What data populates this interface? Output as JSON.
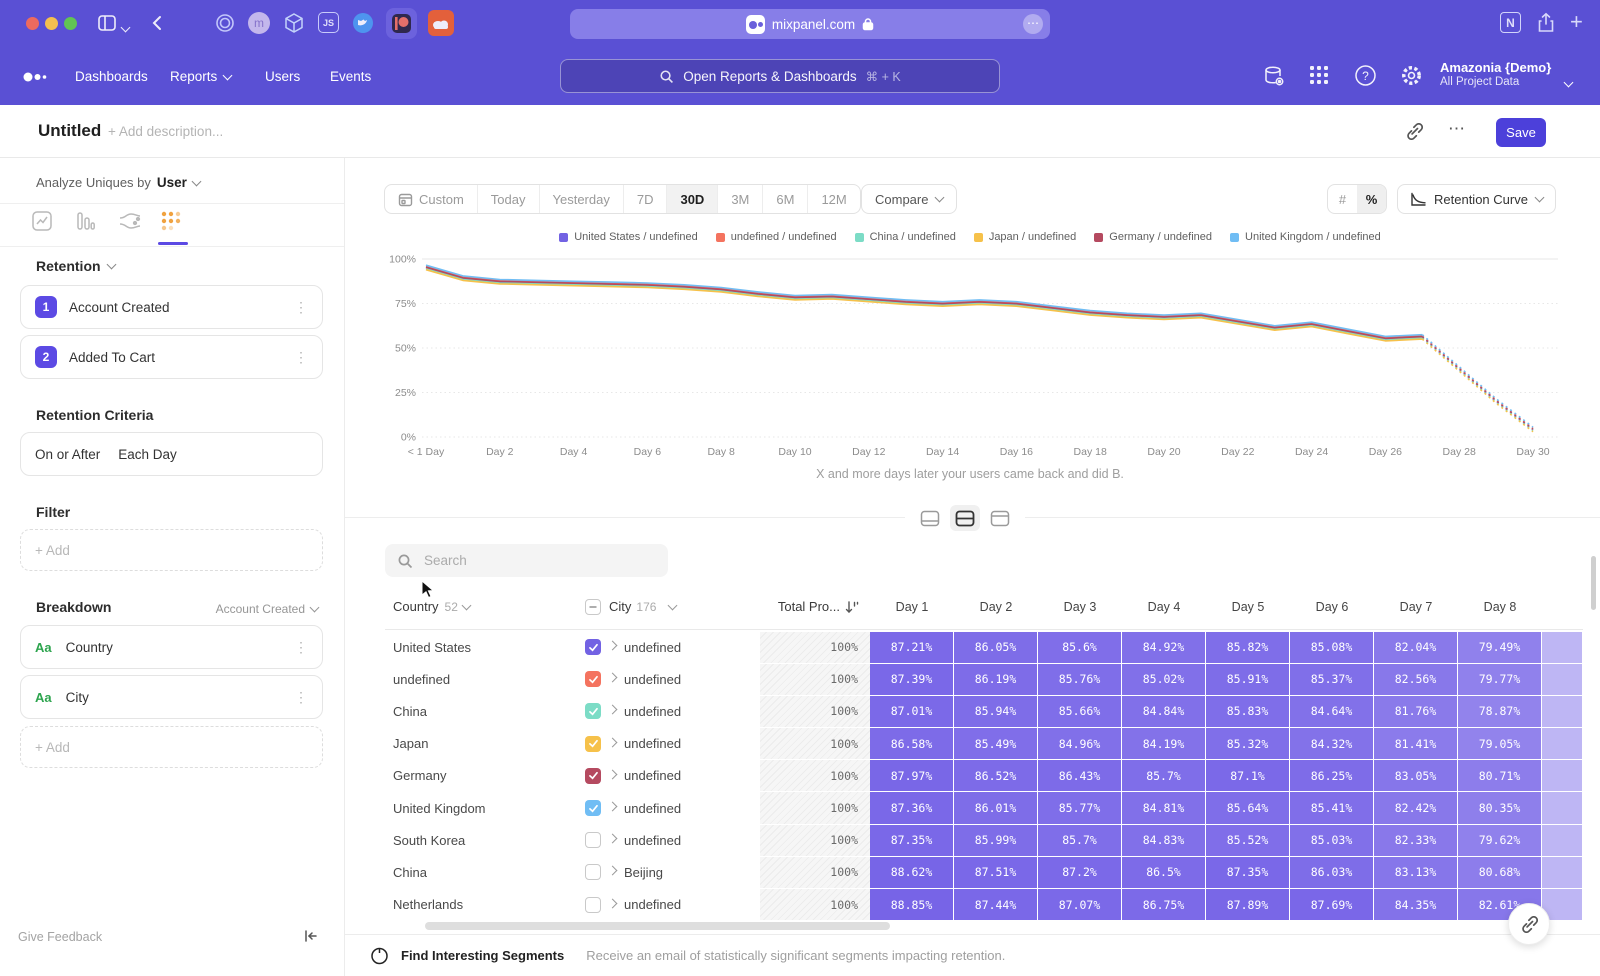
{
  "colors": {
    "top_purple": "#5a50d4",
    "accent": "#4c40da",
    "cell_base_rgb": "101,80,228",
    "active_tab_orange": "#f0a23f",
    "badge_purple": "#5c4ae4"
  },
  "browser": {
    "url": "mixpanel.com",
    "avatar_letter": "m",
    "js_badge": "JS",
    "notion_letter": "N",
    "more_glyph": "⋯"
  },
  "nav": {
    "items": [
      "Dashboards",
      "Reports",
      "Users",
      "Events"
    ],
    "search": {
      "placeholder": "Open Reports & Dashboards",
      "shortcut": "⌘ + K"
    },
    "account": {
      "name": "Amazonia {Demo}",
      "subtitle": "All Project Data"
    }
  },
  "header": {
    "title": "Untitled",
    "description_placeholder": "+ Add description...",
    "more_glyph": "⋯",
    "save_label": "Save"
  },
  "sidebar": {
    "analyze_label": "Analyze Uniques by",
    "analyze_value": "User",
    "section_title": "Retention",
    "steps": [
      {
        "num": "1",
        "label": "Account Created"
      },
      {
        "num": "2",
        "label": "Added To Cart"
      }
    ],
    "kebab_glyph": "⋮",
    "criteria_title": "Retention Criteria",
    "criteria_left": "On or After",
    "criteria_right": "Each Day",
    "filter_title": "Filter",
    "add_label": "+ Add",
    "breakdown_title": "Breakdown",
    "breakdown_context": "Account Created",
    "breakdown_items": [
      {
        "badge": "Aa",
        "label": "Country"
      },
      {
        "badge": "Aa",
        "label": "City"
      }
    ],
    "feedback": "Give Feedback"
  },
  "controls": {
    "ranges": [
      "Custom",
      "Today",
      "Yesterday",
      "7D",
      "30D",
      "3M",
      "6M",
      "12M"
    ],
    "active_range": "30D",
    "compare_label": "Compare",
    "unit_hash": "#",
    "unit_percent": "%",
    "chart_selector": "Retention Curve"
  },
  "chart_data": {
    "type": "line",
    "title": "",
    "xlabel": "",
    "ylabel": "",
    "ylim": [
      0,
      100
    ],
    "x_range_days": [
      0,
      30
    ],
    "grid": "horizontal-dotted",
    "legend_position": "top",
    "dashed_from_day": 27,
    "y_ticks": [
      "0%",
      "25%",
      "50%",
      "75%",
      "100%"
    ],
    "x_tick_labels": [
      "< 1 Day",
      "Day 2",
      "Day 4",
      "Day 6",
      "Day 8",
      "Day 10",
      "Day 12",
      "Day 14",
      "Day 16",
      "Day 18",
      "Day 20",
      "Day 22",
      "Day 24",
      "Day 26",
      "Day 28",
      "Day 30"
    ],
    "series": [
      {
        "name": "United States / undefined",
        "color": "#7262e3",
        "values": [
          95,
          89,
          87,
          86.5,
          86,
          85.5,
          85,
          84,
          82.5,
          80,
          78,
          78.5,
          77,
          75.5,
          74.5,
          75.5,
          74.5,
          72,
          69.5,
          68,
          67,
          68,
          64.5,
          61,
          63,
          59,
          55,
          56,
          38,
          20,
          4
        ]
      },
      {
        "name": "undefined / undefined",
        "color": "#f4735f",
        "values": [
          95.8,
          89.8,
          87.8,
          87.3,
          86.8,
          86.3,
          85.8,
          84.8,
          83.3,
          80.8,
          78.8,
          79.3,
          77.8,
          76.3,
          75.3,
          76.3,
          75.3,
          72.8,
          70.3,
          68.8,
          67.8,
          68.8,
          65.3,
          61.8,
          63.8,
          59.8,
          55.8,
          56.8,
          38.8,
          20.8,
          4.8
        ]
      },
      {
        "name": "China / undefined",
        "color": "#7cdcc6",
        "values": [
          94.6,
          88.6,
          86.6,
          86.1,
          85.6,
          85.1,
          84.6,
          83.6,
          82.1,
          79.6,
          77.6,
          78.1,
          76.6,
          75.1,
          74.1,
          75.1,
          74.1,
          71.6,
          69.1,
          67.6,
          66.6,
          67.6,
          64.1,
          60.6,
          62.6,
          58.6,
          54.6,
          55.6,
          37.6,
          19.6,
          3.6
        ]
      },
      {
        "name": "Japan / undefined",
        "color": "#f6c14a",
        "values": [
          94,
          88,
          86,
          85.5,
          85,
          84.5,
          84,
          83,
          81.5,
          79,
          77,
          77.5,
          76,
          74.5,
          73.5,
          74.5,
          73.5,
          71,
          68.5,
          67,
          66,
          67,
          63.5,
          60,
          62,
          58,
          54,
          55,
          37,
          19,
          3
        ]
      },
      {
        "name": "Germany / undefined",
        "color": "#b54a60",
        "values": [
          95.4,
          89.4,
          87.4,
          86.9,
          86.4,
          85.9,
          85.4,
          84.4,
          82.9,
          80.4,
          78.4,
          78.9,
          77.4,
          75.9,
          74.9,
          75.9,
          74.9,
          72.4,
          69.9,
          68.4,
          67.4,
          68.4,
          64.9,
          61.4,
          63.4,
          59.4,
          55.4,
          56.4,
          38.4,
          20.4,
          4.4
        ]
      },
      {
        "name": "United Kingdom / undefined",
        "color": "#70bdf4",
        "values": [
          96.5,
          90.5,
          88.5,
          88,
          87.5,
          87,
          86.5,
          85.5,
          84,
          81.5,
          79.5,
          80,
          78.5,
          77,
          76,
          77,
          76,
          73.5,
          71,
          69.5,
          68.5,
          69.5,
          66,
          62.5,
          64.5,
          60.5,
          56.5,
          57.5,
          39.5,
          21.5,
          5.5
        ]
      }
    ],
    "caption": "X and more days later your users came back and did B."
  },
  "table": {
    "search_placeholder": "Search",
    "country_col": {
      "label": "Country",
      "count": "52"
    },
    "city_col": {
      "label": "City",
      "count": "176"
    },
    "total_col": "Total Pro...",
    "day_headers": [
      "Day 1",
      "Day 2",
      "Day 3",
      "Day 4",
      "Day 5",
      "Day 6",
      "Day 7",
      "Day 8"
    ],
    "rows": [
      {
        "country": "United States",
        "city": "undefined",
        "checked": true,
        "color": "#7262e3",
        "total": "100%",
        "values": [
          "87.21%",
          "86.05%",
          "85.6%",
          "84.92%",
          "85.82%",
          "85.08%",
          "82.04%",
          "79.49%"
        ]
      },
      {
        "country": "undefined",
        "city": "undefined",
        "checked": true,
        "color": "#f4735f",
        "total": "100%",
        "values": [
          "87.39%",
          "86.19%",
          "85.76%",
          "85.02%",
          "85.91%",
          "85.37%",
          "82.56%",
          "79.77%"
        ]
      },
      {
        "country": "China",
        "city": "undefined",
        "checked": true,
        "color": "#7cdcc6",
        "total": "100%",
        "values": [
          "87.01%",
          "85.94%",
          "85.66%",
          "84.84%",
          "85.83%",
          "84.64%",
          "81.76%",
          "78.87%"
        ]
      },
      {
        "country": "Japan",
        "city": "undefined",
        "checked": true,
        "color": "#f6c14a",
        "total": "100%",
        "values": [
          "86.58%",
          "85.49%",
          "84.96%",
          "84.19%",
          "85.32%",
          "84.32%",
          "81.41%",
          "79.05%"
        ]
      },
      {
        "country": "Germany",
        "city": "undefined",
        "checked": true,
        "color": "#b54a60",
        "total": "100%",
        "values": [
          "87.97%",
          "86.52%",
          "86.43%",
          "85.7%",
          "87.1%",
          "86.25%",
          "83.05%",
          "80.71%"
        ]
      },
      {
        "country": "United Kingdom",
        "city": "undefined",
        "checked": true,
        "color": "#70bdf4",
        "total": "100%",
        "values": [
          "87.36%",
          "86.01%",
          "85.77%",
          "84.81%",
          "85.64%",
          "85.41%",
          "82.42%",
          "80.35%"
        ]
      },
      {
        "country": "South Korea",
        "city": "undefined",
        "checked": false,
        "color": null,
        "total": "100%",
        "values": [
          "87.35%",
          "85.99%",
          "85.7%",
          "84.83%",
          "85.52%",
          "85.03%",
          "82.33%",
          "79.62%"
        ]
      },
      {
        "country": "China",
        "city": "Beijing",
        "checked": false,
        "color": null,
        "total": "100%",
        "values": [
          "88.62%",
          "87.51%",
          "87.2%",
          "86.5%",
          "87.35%",
          "86.03%",
          "83.13%",
          "80.68%"
        ]
      },
      {
        "country": "Netherlands",
        "city": "undefined",
        "checked": false,
        "color": null,
        "total": "100%",
        "values": [
          "88.85%",
          "87.44%",
          "87.07%",
          "86.75%",
          "87.89%",
          "87.69%",
          "84.35%",
          "82.61%"
        ]
      }
    ]
  },
  "footer": {
    "title": "Find Interesting Segments",
    "subtitle": "Receive an email of statistically significant segments impacting retention."
  }
}
